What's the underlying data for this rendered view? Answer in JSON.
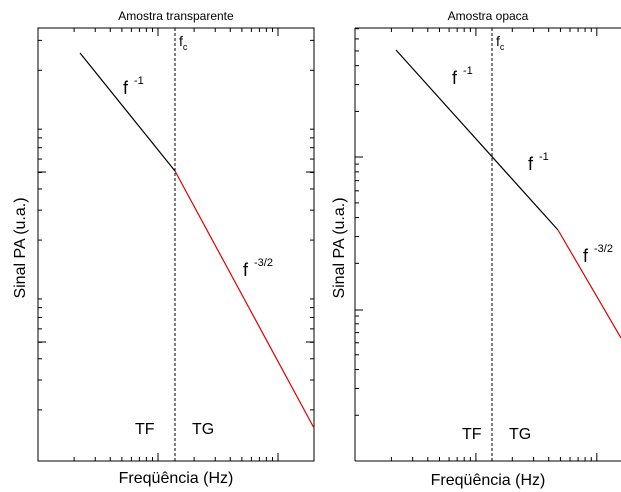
{
  "chart_data": [
    {
      "type": "line",
      "title": "Amostra transparente",
      "xlabel": "Freqüência (Hz)",
      "ylabel": "Sinal PA (u.a.)",
      "scale": "log-log",
      "grid": false,
      "cutoff_label": "f",
      "cutoff_sub": "c",
      "region_labels": [
        "TF",
        "TG"
      ],
      "segments": [
        {
          "label_base": "f",
          "label_exp": "-1",
          "color": "#000000",
          "slope": "-1"
        },
        {
          "label_base": "f",
          "label_exp": "-3/2",
          "color": "#e00000",
          "slope": "-3/2"
        }
      ]
    },
    {
      "type": "line",
      "title": "Amostra opaca",
      "xlabel": "Freqüência (Hz)",
      "ylabel": "Sinal PA (u.a.)",
      "scale": "log-log",
      "grid": false,
      "cutoff_label": "f",
      "cutoff_sub": "c",
      "region_labels": [
        "TF",
        "TG"
      ],
      "segments": [
        {
          "label_base": "f",
          "label_exp": "-1",
          "color": "#000000",
          "slope": "-1"
        },
        {
          "label_base": "f",
          "label_exp": "-1",
          "color": "#000000",
          "slope": "-1"
        },
        {
          "label_base": "f",
          "label_exp": "-3/2",
          "color": "#e00000",
          "slope": "-3/2"
        }
      ]
    }
  ]
}
